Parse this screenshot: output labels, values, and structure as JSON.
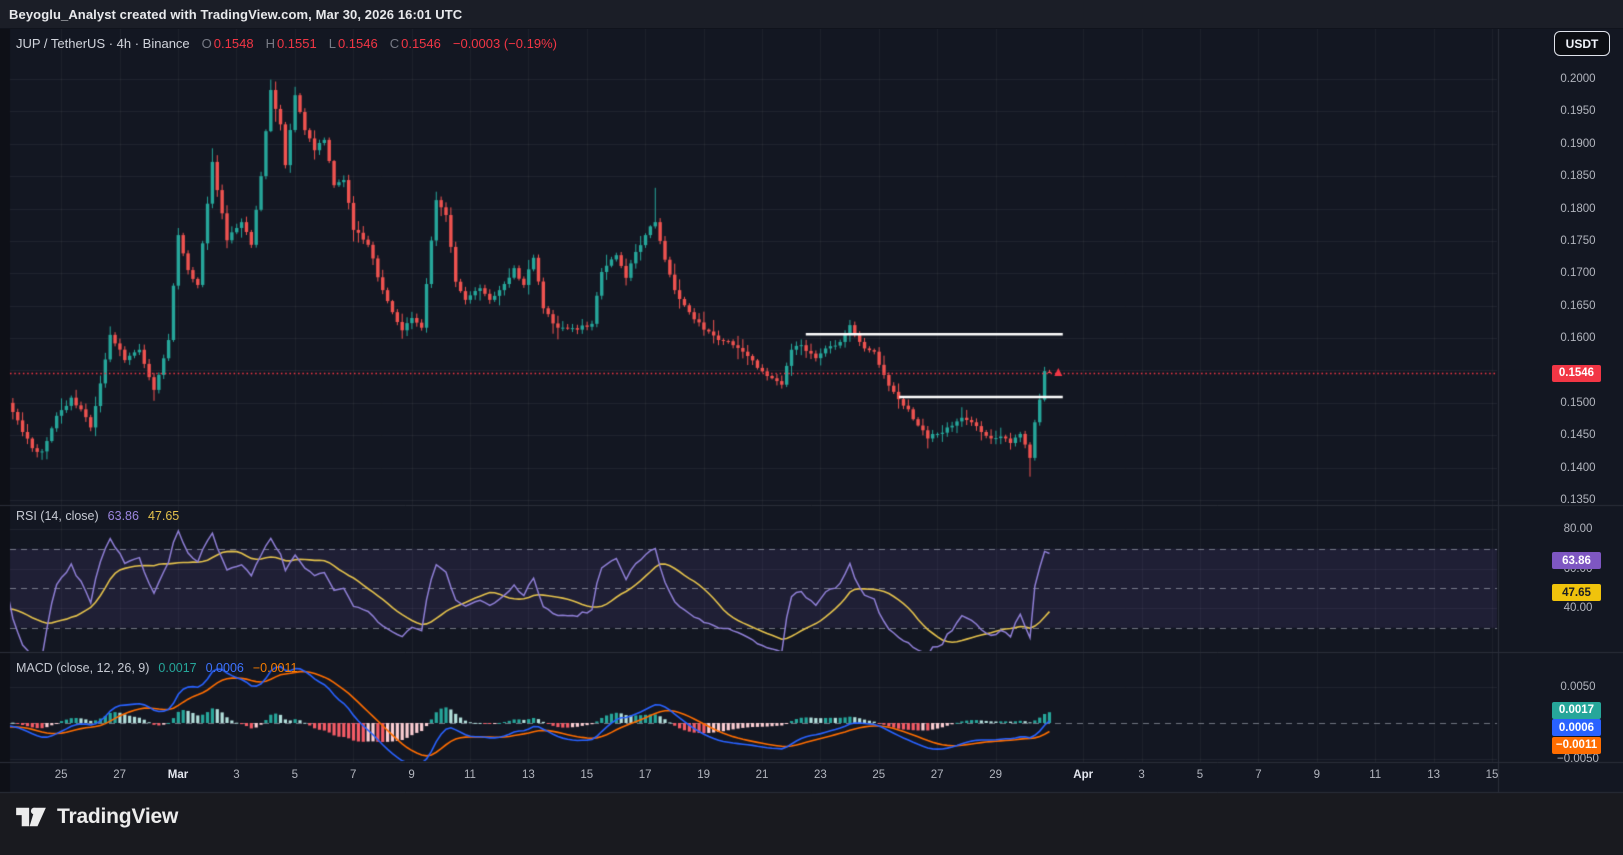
{
  "attribution": "Beyoglu_Analyst created with TradingView.com, Mar 30, 2026 16:01 UTC",
  "symbol": {
    "title": "JUP / TetherUS · 4h · Binance",
    "open_label": "O",
    "open": "0.1548",
    "high_label": "H",
    "high": "0.1551",
    "low_label": "L",
    "low": "0.1546",
    "close_label": "C",
    "close": "0.1546",
    "change": "−0.0003 (−0.19%)"
  },
  "currency_button": {
    "label": "USDT"
  },
  "price_axis": {
    "labels": [
      {
        "text": "0.2000",
        "value": 0.2
      },
      {
        "text": "0.1950",
        "value": 0.195
      },
      {
        "text": "0.1900",
        "value": 0.19
      },
      {
        "text": "0.1850",
        "value": 0.185
      },
      {
        "text": "0.1800",
        "value": 0.18
      },
      {
        "text": "0.1750",
        "value": 0.175
      },
      {
        "text": "0.1700",
        "value": 0.17
      },
      {
        "text": "0.1650",
        "value": 0.165
      },
      {
        "text": "0.1600",
        "value": 0.16
      },
      {
        "text": "0.1500",
        "value": 0.15
      },
      {
        "text": "0.1450",
        "value": 0.145
      },
      {
        "text": "0.1400",
        "value": 0.14
      },
      {
        "text": "0.1350",
        "value": 0.135
      }
    ],
    "last_price": "0.1546"
  },
  "time_axis": {
    "ticks": [
      {
        "label": "25",
        "d": -3
      },
      {
        "label": "27",
        "d": -1
      },
      {
        "label": "Mar",
        "d": 1,
        "month": true
      },
      {
        "label": "3",
        "d": 3
      },
      {
        "label": "5",
        "d": 5
      },
      {
        "label": "7",
        "d": 7
      },
      {
        "label": "9",
        "d": 9
      },
      {
        "label": "11",
        "d": 11
      },
      {
        "label": "13",
        "d": 13
      },
      {
        "label": "15",
        "d": 15
      },
      {
        "label": "17",
        "d": 17
      },
      {
        "label": "19",
        "d": 19
      },
      {
        "label": "21",
        "d": 21
      },
      {
        "label": "23",
        "d": 23
      },
      {
        "label": "25",
        "d": 25
      },
      {
        "label": "27",
        "d": 27
      },
      {
        "label": "29",
        "d": 29
      },
      {
        "label": "Apr",
        "d": 32,
        "month": true
      },
      {
        "label": "3",
        "d": 34
      },
      {
        "label": "5",
        "d": 36
      },
      {
        "label": "7",
        "d": 38
      },
      {
        "label": "9",
        "d": 40
      },
      {
        "label": "11",
        "d": 42
      },
      {
        "label": "13",
        "d": 44
      },
      {
        "label": "15",
        "d": 46
      }
    ]
  },
  "rsi": {
    "label": "RSI (14, close)",
    "value": "63.86",
    "ma_value": "47.65",
    "axis_labels": [
      {
        "text": "80.00",
        "v": 80
      },
      {
        "text": "60.00",
        "v": 60
      },
      {
        "text": "40.00",
        "v": 40
      }
    ]
  },
  "macd": {
    "label": "MACD (close, 12, 26, 9)",
    "hist_value": "0.0017",
    "macd_value": "0.0006",
    "signal_value": "−0.0011",
    "axis_labels": [
      {
        "text": "0.0050",
        "v": 0.005
      },
      {
        "text": "−0.0050",
        "v": -0.005
      }
    ]
  },
  "logo": {
    "text": "TradingView"
  },
  "chart_data": {
    "type": "candlestick",
    "title": "JUP / TetherUS",
    "exchange": "Binance",
    "interval": "4h",
    "as_of": "Mar 30, 2026 16:01 UTC",
    "price_ylim": [
      0.1342,
      0.2079
    ],
    "price_gridlines": [
      0.2,
      0.195,
      0.19,
      0.185,
      0.18,
      0.175,
      0.17,
      0.165,
      0.16,
      0.155,
      0.15,
      0.145,
      0.14,
      0.135
    ],
    "bars": 215,
    "bar_hours": 4,
    "start_day_rel_mar1": -4.8,
    "close_anchors": [
      [
        -40,
        0.152
      ],
      [
        -32,
        0.1545
      ],
      [
        -24,
        0.15
      ],
      [
        -16,
        0.1515
      ],
      [
        -8,
        0.1488
      ],
      [
        -1,
        0.1502
      ],
      [
        0,
        0.15
      ],
      [
        3,
        0.1455
      ],
      [
        5,
        0.143
      ],
      [
        7,
        0.1425
      ],
      [
        10,
        0.148
      ],
      [
        13,
        0.1508
      ],
      [
        15,
        0.149
      ],
      [
        17,
        0.1462
      ],
      [
        19,
        0.153
      ],
      [
        21,
        0.1605
      ],
      [
        24,
        0.1566
      ],
      [
        27,
        0.1582
      ],
      [
        30,
        0.152
      ],
      [
        33,
        0.1597
      ],
      [
        35,
        0.1759
      ],
      [
        37,
        0.1705
      ],
      [
        39,
        0.1682
      ],
      [
        42,
        0.1872
      ],
      [
        45,
        0.1751
      ],
      [
        48,
        0.1779
      ],
      [
        50,
        0.1744
      ],
      [
        52,
        0.185
      ],
      [
        54,
        0.1983
      ],
      [
        56,
        0.193
      ],
      [
        57,
        0.1867
      ],
      [
        59,
        0.1975
      ],
      [
        61,
        0.1921
      ],
      [
        63,
        0.189
      ],
      [
        65,
        0.1906
      ],
      [
        67,
        0.1836
      ],
      [
        69,
        0.1844
      ],
      [
        71,
        0.1767
      ],
      [
        74,
        0.1744
      ],
      [
        77,
        0.1674
      ],
      [
        79,
        0.164
      ],
      [
        81,
        0.1612
      ],
      [
        83,
        0.1631
      ],
      [
        85,
        0.1616
      ],
      [
        88,
        0.1813
      ],
      [
        90,
        0.179
      ],
      [
        92,
        0.1687
      ],
      [
        94,
        0.1659
      ],
      [
        97,
        0.1677
      ],
      [
        99,
        0.1659
      ],
      [
        101,
        0.1674
      ],
      [
        104,
        0.1708
      ],
      [
        106,
        0.1682
      ],
      [
        108,
        0.1724
      ],
      [
        110,
        0.1646
      ],
      [
        113,
        0.1616
      ],
      [
        117,
        0.1613
      ],
      [
        120,
        0.1622
      ],
      [
        122,
        0.1702
      ],
      [
        125,
        0.1728
      ],
      [
        127,
        0.1693
      ],
      [
        129,
        0.1733
      ],
      [
        131,
        0.1759
      ],
      [
        133,
        0.1779
      ],
      [
        135,
        0.1721
      ],
      [
        137,
        0.1674
      ],
      [
        140,
        0.164
      ],
      [
        143,
        0.1613
      ],
      [
        146,
        0.1597
      ],
      [
        149,
        0.1589
      ],
      [
        151,
        0.1579
      ],
      [
        154,
        0.1554
      ],
      [
        157,
        0.1538
      ],
      [
        159,
        0.1528
      ],
      [
        161,
        0.1582
      ],
      [
        163,
        0.1589
      ],
      [
        166,
        0.1569
      ],
      [
        168,
        0.1584
      ],
      [
        171,
        0.1594
      ],
      [
        173,
        0.162
      ],
      [
        174,
        0.1605
      ],
      [
        176,
        0.1584
      ],
      [
        178,
        0.1579
      ],
      [
        180,
        0.1543
      ],
      [
        182,
        0.1517
      ],
      [
        185,
        0.149
      ],
      [
        187,
        0.1465
      ],
      [
        189,
        0.1445
      ],
      [
        191,
        0.1452
      ],
      [
        193,
        0.1462
      ],
      [
        196,
        0.1477
      ],
      [
        198,
        0.147
      ],
      [
        200,
        0.1455
      ],
      [
        202,
        0.1445
      ],
      [
        204,
        0.1448
      ],
      [
        206,
        0.1438
      ],
      [
        208,
        0.1452
      ],
      [
        210,
        0.1415
      ],
      [
        211,
        0.147
      ],
      [
        212,
        0.1505
      ],
      [
        213,
        0.1549
      ],
      [
        214,
        0.1546
      ]
    ],
    "wick_overrides": {
      "7": {
        "l": 0.1412
      },
      "21": {
        "h": 0.1618
      },
      "42": {
        "h": 0.1893
      },
      "54": {
        "h": 0.1999
      },
      "59": {
        "h": 0.1988
      },
      "88": {
        "h": 0.1826
      },
      "133": {
        "h": 0.1832
      },
      "173": {
        "h": 0.1628
      },
      "210": {
        "l": 0.1386
      }
    },
    "last_bar": {
      "o": 0.1548,
      "h": 0.1551,
      "l": 0.1546,
      "c": 0.1546
    },
    "last_price": 0.1546,
    "resistance_line": {
      "price": 0.1606,
      "day_from": 22.5,
      "day_to": 31.3
    },
    "support_line": {
      "price": 0.1509,
      "day_from": 25.7,
      "day_to": 31.3
    },
    "rsi": {
      "period": 14,
      "ma_period": 14,
      "last": 63.86,
      "ma_last": 47.65,
      "overbought": 70,
      "mid": 50,
      "oversold": 30,
      "ylim": [
        18,
        92
      ]
    },
    "macd": {
      "fast": 12,
      "slow": 26,
      "signal": 9,
      "last_macd": 0.0006,
      "last_signal": -0.0011,
      "last_hist": 0.0017,
      "ylim": [
        -0.0054,
        0.0099
      ]
    },
    "colors": {
      "background": "#131722",
      "up": "#26a69a",
      "down": "#ef5350",
      "rsi_line": "#8f7fd6",
      "rsi_ma": "#e3c14c",
      "rsi_band": "rgba(126,87,194,0.12)",
      "macd_line": "#2962ff",
      "signal_line": "#ff6d00",
      "hist_up": "#26a69a",
      "hist_up_weak": "#b2dfdb",
      "hist_down": "#f45b66",
      "hist_down_weak": "#fbcdd2",
      "last_price_color": "#f23645",
      "level_line": "#ffffff",
      "badge_rsi": "#7e57c2",
      "badge_rsi_ma": "#f0c30c",
      "badge_hist": "#26a69a",
      "badge_macd": "#2962ff",
      "badge_signal": "#ff6d00"
    }
  }
}
